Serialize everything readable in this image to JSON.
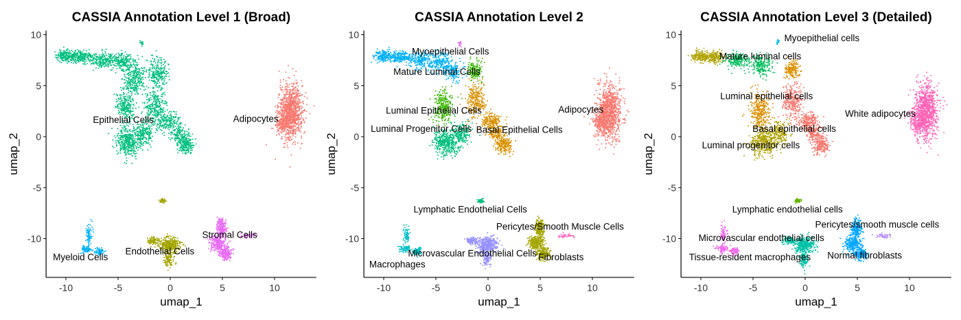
{
  "chart_data": [
    {
      "type": "scatter",
      "title": "CASSIA Annotation Level 1 (Broad)",
      "xlabel": "umap_1",
      "ylabel": "umap_2",
      "xlim": [
        -11.9,
        14
      ],
      "ylim": [
        -13.8,
        10.4
      ],
      "xticks": [
        -10,
        -5,
        0,
        5,
        10
      ],
      "yticks": [
        -10,
        -5,
        0,
        5,
        10
      ],
      "grid": false,
      "clusters": [
        {
          "name": "Adipocytes",
          "color": "#F8766D",
          "label_at": [
            8.2,
            1.8
          ]
        },
        {
          "name": "Endothelial Cells",
          "color": "#A3A500",
          "label_at": [
            -1.0,
            -11.2
          ]
        },
        {
          "name": "Epithelial Cells",
          "color": "#00BF7D",
          "label_at": [
            -4.5,
            1.7
          ]
        },
        {
          "name": "Myeloid Cells",
          "color": "#00B0F6",
          "label_at": [
            -8.6,
            -11.8
          ]
        },
        {
          "name": "Stromal Cells",
          "color": "#E76BF3",
          "label_at": [
            5.7,
            -9.6
          ]
        }
      ]
    },
    {
      "type": "scatter",
      "title": "CASSIA Annotation Level 2",
      "xlabel": "umap_1",
      "ylabel": "umap_2",
      "xlim": [
        -11.9,
        14
      ],
      "ylim": [
        -13.8,
        10.4
      ],
      "xticks": [
        -10,
        -5,
        0,
        5,
        10
      ],
      "yticks": [
        -10,
        -5,
        0,
        5,
        10
      ],
      "grid": false,
      "clusters": [
        {
          "name": "Adipocytes",
          "color": "#F8766D",
          "label_at": [
            8.9,
            2.7
          ]
        },
        {
          "name": "Basal Epithelial Cells",
          "color": "#D89000",
          "label_at": [
            3.0,
            0.7
          ]
        },
        {
          "name": "Fibroblasts",
          "color": "#A3A500",
          "label_at": [
            7.0,
            -11.8
          ]
        },
        {
          "name": "Luminal Epithelial Cells",
          "color": "#39B600",
          "label_at": [
            -5.2,
            2.6
          ]
        },
        {
          "name": "Luminal Progenitor Cells",
          "color": "#00BF7D",
          "label_at": [
            -6.4,
            0.8
          ]
        },
        {
          "name": "Lymphatic Endothelial Cells",
          "color": "#00BF7D",
          "label_at": [
            -1.7,
            -7.1
          ]
        },
        {
          "name": "Macrophages",
          "color": "#00BFC4",
          "label_at": [
            -8.7,
            -12.5
          ]
        },
        {
          "name": "Mature Luminal Cells",
          "color": "#00B0F6",
          "label_at": [
            -4.9,
            6.4
          ]
        },
        {
          "name": "Microvascular Endothelial Cells",
          "color": "#9590FF",
          "label_at": [
            -1.5,
            -11.4
          ]
        },
        {
          "name": "Myoepithelial Cells",
          "color": "#E76BF3",
          "label_at": [
            -3.6,
            8.4
          ]
        },
        {
          "name": "Pericytes/Smooth Muscle Cells",
          "color": "#FF62BC",
          "label_at": [
            6.9,
            -8.8
          ]
        }
      ]
    },
    {
      "type": "scatter",
      "title": "CASSIA Annotation Level 3 (Detailed)",
      "xlabel": "umap_1",
      "ylabel": "umap_2",
      "xlim": [
        -11.9,
        14
      ],
      "ylim": [
        -13.8,
        10.4
      ],
      "xticks": [
        -10,
        -5,
        0,
        5,
        10
      ],
      "yticks": [
        -10,
        -5,
        0,
        5,
        10
      ],
      "grid": false,
      "clusters": [
        {
          "name": "Basal epithelial cells",
          "color": "#F8766D",
          "label_at": [
            -1.05,
            0.8
          ]
        },
        {
          "name": "Luminal epithelial cells",
          "color": "#DB8E00",
          "label_at": [
            -3.7,
            4.0
          ]
        },
        {
          "name": "Luminal progenitor cells",
          "color": "#AEA200",
          "label_at": [
            -5.2,
            -0.8
          ]
        },
        {
          "name": "Lymphatic endothelial cells",
          "color": "#64B200",
          "label_at": [
            -1.7,
            -7.1
          ]
        },
        {
          "name": "Mature luminal cells",
          "color": "#00BD5C",
          "label_at": [
            -4.3,
            7.9
          ]
        },
        {
          "name": "Microvascular endothelial cells",
          "color": "#00C1A7",
          "label_at": [
            -4.2,
            -9.9
          ]
        },
        {
          "name": "Myoepithelial cells",
          "color": "#00BADE",
          "label_at": [
            1.6,
            9.7
          ]
        },
        {
          "name": "Normal fibroblasts",
          "color": "#00A6FF",
          "label_at": [
            5.7,
            -11.6
          ]
        },
        {
          "name": "Pericytes/smooth muscle cells",
          "color": "#B385FF",
          "label_at": [
            6.9,
            -8.6
          ]
        },
        {
          "name": "Tissue-resident macrophages",
          "color": "#EF67EB",
          "label_at": [
            -5.3,
            -11.8
          ]
        },
        {
          "name": "White adipocytes",
          "color": "#FF63B6",
          "label_at": [
            7.2,
            2.3
          ]
        }
      ]
    }
  ]
}
